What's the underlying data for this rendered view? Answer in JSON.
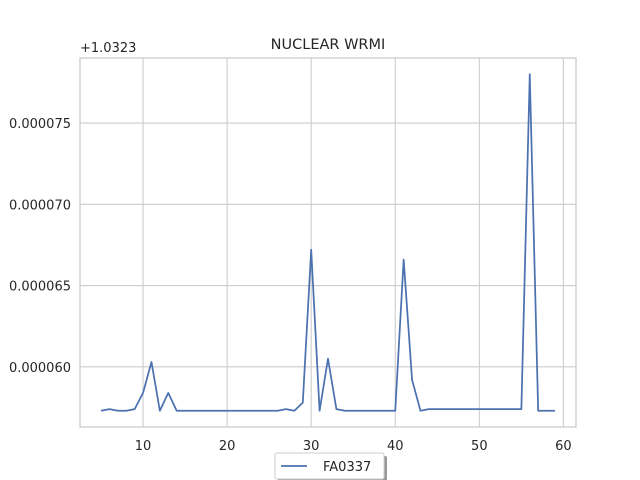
{
  "chart_data": {
    "type": "line",
    "title": "NUCLEAR WRMI",
    "xlabel": "",
    "ylabel": "",
    "y_offset_label": "+1.0323",
    "xlim": [
      2.5,
      61.5
    ],
    "ylim": [
      5.63e-05,
      7.9e-05
    ],
    "x_ticks": [
      10,
      20,
      30,
      40,
      50,
      60
    ],
    "x_tick_labels": [
      "10",
      "20",
      "30",
      "40",
      "50",
      "60"
    ],
    "y_ticks": [
      6e-05,
      6.5e-05,
      7e-05,
      7.5e-05
    ],
    "y_tick_labels": [
      "0.000060",
      "0.000065",
      "0.000070",
      "0.000075"
    ],
    "grid": true,
    "legend_position": "lower-center",
    "colors": {
      "series": "#4c72b0",
      "grid": "#cccccc",
      "axes": "#cccccc",
      "text": "#262626"
    },
    "series": [
      {
        "name": "FA0337",
        "x": [
          5,
          6,
          7,
          8,
          9,
          10,
          11,
          12,
          13,
          14,
          15,
          16,
          17,
          18,
          19,
          20,
          21,
          22,
          23,
          24,
          25,
          26,
          27,
          28,
          29,
          30,
          31,
          32,
          33,
          34,
          35,
          36,
          37,
          38,
          39,
          40,
          41,
          42,
          43,
          44,
          45,
          46,
          47,
          48,
          49,
          50,
          51,
          52,
          53,
          54,
          55,
          56,
          57,
          58,
          59
        ],
        "values": [
          5.73e-05,
          5.74e-05,
          5.73e-05,
          5.73e-05,
          5.74e-05,
          5.84e-05,
          6.03e-05,
          5.73e-05,
          5.84e-05,
          5.73e-05,
          5.73e-05,
          5.73e-05,
          5.73e-05,
          5.73e-05,
          5.73e-05,
          5.73e-05,
          5.73e-05,
          5.73e-05,
          5.73e-05,
          5.73e-05,
          5.73e-05,
          5.73e-05,
          5.74e-05,
          5.73e-05,
          5.78e-05,
          6.72e-05,
          5.73e-05,
          6.05e-05,
          5.74e-05,
          5.73e-05,
          5.73e-05,
          5.73e-05,
          5.73e-05,
          5.73e-05,
          5.73e-05,
          5.73e-05,
          6.66e-05,
          5.92e-05,
          5.73e-05,
          5.74e-05,
          5.74e-05,
          5.74e-05,
          5.74e-05,
          5.74e-05,
          5.74e-05,
          5.74e-05,
          5.74e-05,
          5.74e-05,
          5.74e-05,
          5.74e-05,
          5.74e-05,
          7.8e-05,
          5.73e-05,
          5.73e-05,
          5.73e-05
        ]
      }
    ]
  }
}
